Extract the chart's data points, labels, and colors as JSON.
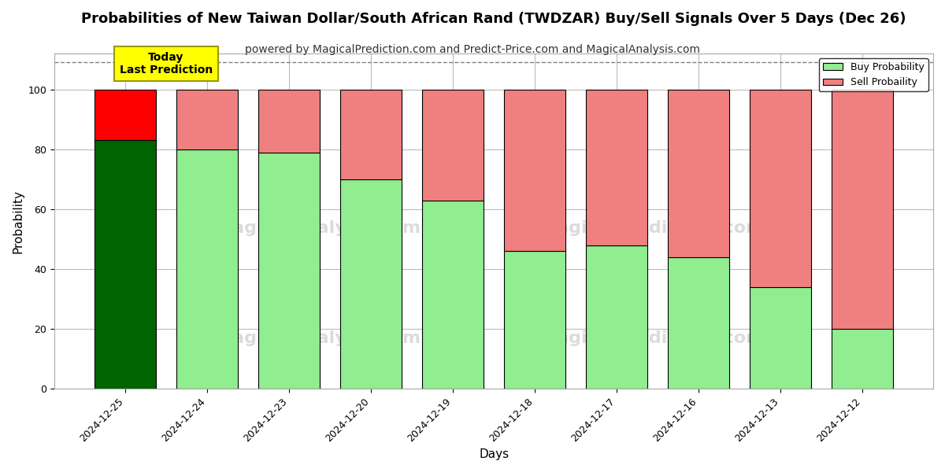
{
  "title": "Probabilities of New Taiwan Dollar/South African Rand (TWDZAR) Buy/Sell Signals Over 5 Days (Dec 26)",
  "subtitle": "powered by MagicalPrediction.com and Predict-Price.com and MagicalAnalysis.com",
  "xlabel": "Days",
  "ylabel": "Probability",
  "categories": [
    "2024-12-25",
    "2024-12-24",
    "2024-12-23",
    "2024-12-20",
    "2024-12-19",
    "2024-12-18",
    "2024-12-17",
    "2024-12-16",
    "2024-12-13",
    "2024-12-12"
  ],
  "buy_values": [
    83,
    80,
    79,
    70,
    63,
    46,
    48,
    44,
    34,
    20
  ],
  "sell_values": [
    17,
    20,
    21,
    30,
    37,
    54,
    52,
    56,
    66,
    80
  ],
  "today_buy_color": "#006400",
  "today_sell_color": "#FF0000",
  "buy_color": "#90EE90",
  "sell_color": "#F08080",
  "bar_edgecolor": "#000000",
  "today_label_bg": "#FFFF00",
  "today_label_text": "Today\nLast Prediction",
  "legend_buy_label": "Buy Probability",
  "legend_sell_label": "Sell Probaility",
  "ylim_max": 112,
  "yticks": [
    0,
    20,
    40,
    60,
    80,
    100
  ],
  "dashed_line_y": 109,
  "background_color": "#ffffff",
  "grid_color": "#bbbbbb",
  "title_fontsize": 13,
  "subtitle_fontsize": 10,
  "axis_label_fontsize": 11,
  "tick_fontsize": 9,
  "bar_width": 0.75
}
